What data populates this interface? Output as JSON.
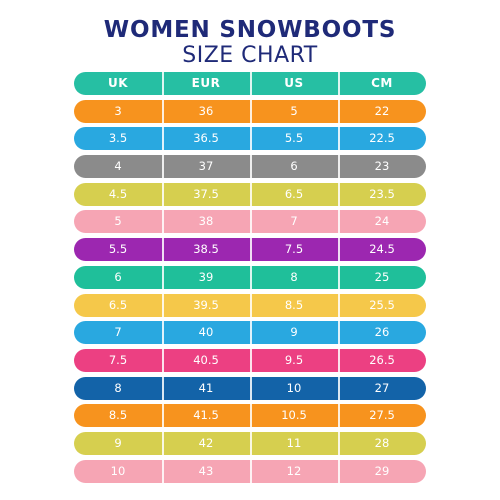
{
  "title": {
    "line1": "WOMEN SNOWBOOTS",
    "line2": "SIZE CHART"
  },
  "columns": [
    "UK",
    "EUR",
    "US",
    "CM"
  ],
  "header_color": "#26bfa3",
  "rows": [
    {
      "cells": [
        "3",
        "36",
        "5",
        "22"
      ],
      "color": "#f7931e"
    },
    {
      "cells": [
        "3.5",
        "36.5",
        "5.5",
        "22.5"
      ],
      "color": "#29a8e0"
    },
    {
      "cells": [
        "4",
        "37",
        "6",
        "23"
      ],
      "color": "#8b8b8b"
    },
    {
      "cells": [
        "4.5",
        "37.5",
        "6.5",
        "23.5"
      ],
      "color": "#d6cf4f"
    },
    {
      "cells": [
        "5",
        "38",
        "7",
        "24"
      ],
      "color": "#f6a5b4"
    },
    {
      "cells": [
        "5.5",
        "38.5",
        "7.5",
        "24.5"
      ],
      "color": "#9c27b0"
    },
    {
      "cells": [
        "6",
        "39",
        "8",
        "25"
      ],
      "color": "#1fbf9a"
    },
    {
      "cells": [
        "6.5",
        "39.5",
        "8.5",
        "25.5"
      ],
      "color": "#f5c84a"
    },
    {
      "cells": [
        "7",
        "40",
        "9",
        "26"
      ],
      "color": "#29a8e0"
    },
    {
      "cells": [
        "7.5",
        "40.5",
        "9.5",
        "26.5"
      ],
      "color": "#ec4082"
    },
    {
      "cells": [
        "8",
        "41",
        "10",
        "27"
      ],
      "color": "#1363a8"
    },
    {
      "cells": [
        "8.5",
        "41.5",
        "10.5",
        "27.5"
      ],
      "color": "#f7931e"
    },
    {
      "cells": [
        "9",
        "42",
        "11",
        "28"
      ],
      "color": "#d6cf4f"
    },
    {
      "cells": [
        "10",
        "43",
        "12",
        "29"
      ],
      "color": "#f6a5b4"
    }
  ]
}
